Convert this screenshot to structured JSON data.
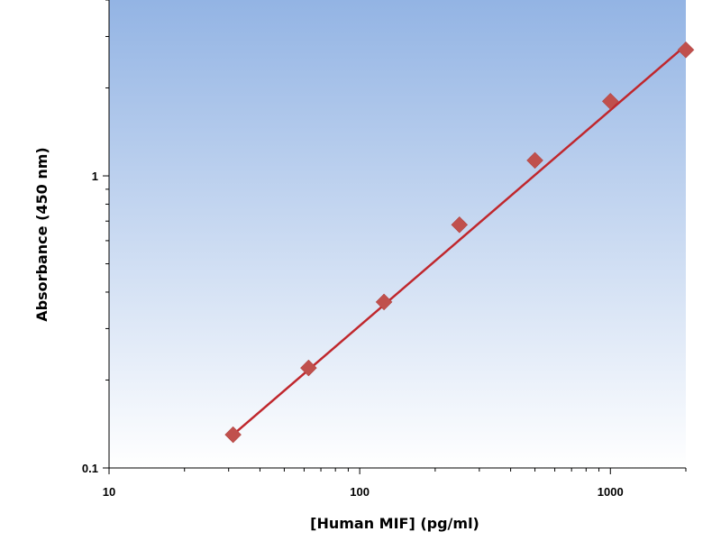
{
  "chart_data": {
    "type": "scatter",
    "xlabel": "[Human MIF] (pg/ml)",
    "ylabel": "Absorbance (450 nm)",
    "x_scale": "log",
    "y_scale": "log",
    "xlim": [
      10,
      2000
    ],
    "ylim": [
      0.1,
      4
    ],
    "x_ticks": [
      {
        "value": 10,
        "label": "10"
      },
      {
        "value": 100,
        "label": "100"
      },
      {
        "value": 1000,
        "label": "1000"
      }
    ],
    "y_ticks": [
      {
        "value": 0.1,
        "label": "0.1"
      },
      {
        "value": 1,
        "label": "1"
      }
    ],
    "series": [
      {
        "x": [
          31.25,
          62.5,
          125,
          250,
          500,
          1000,
          2000
        ],
        "y": [
          0.13,
          0.22,
          0.37,
          0.68,
          1.13,
          1.8,
          2.7
        ],
        "marker": "diamond",
        "color": "#c0504d"
      }
    ],
    "trendline": {
      "x_start": 31.25,
      "x_end": 2000,
      "y_start": 0.13,
      "y_end": 2.8,
      "color": "#c0272d"
    },
    "background_gradient": [
      "#93b4e4",
      "#ffffff"
    ],
    "grid": false
  }
}
